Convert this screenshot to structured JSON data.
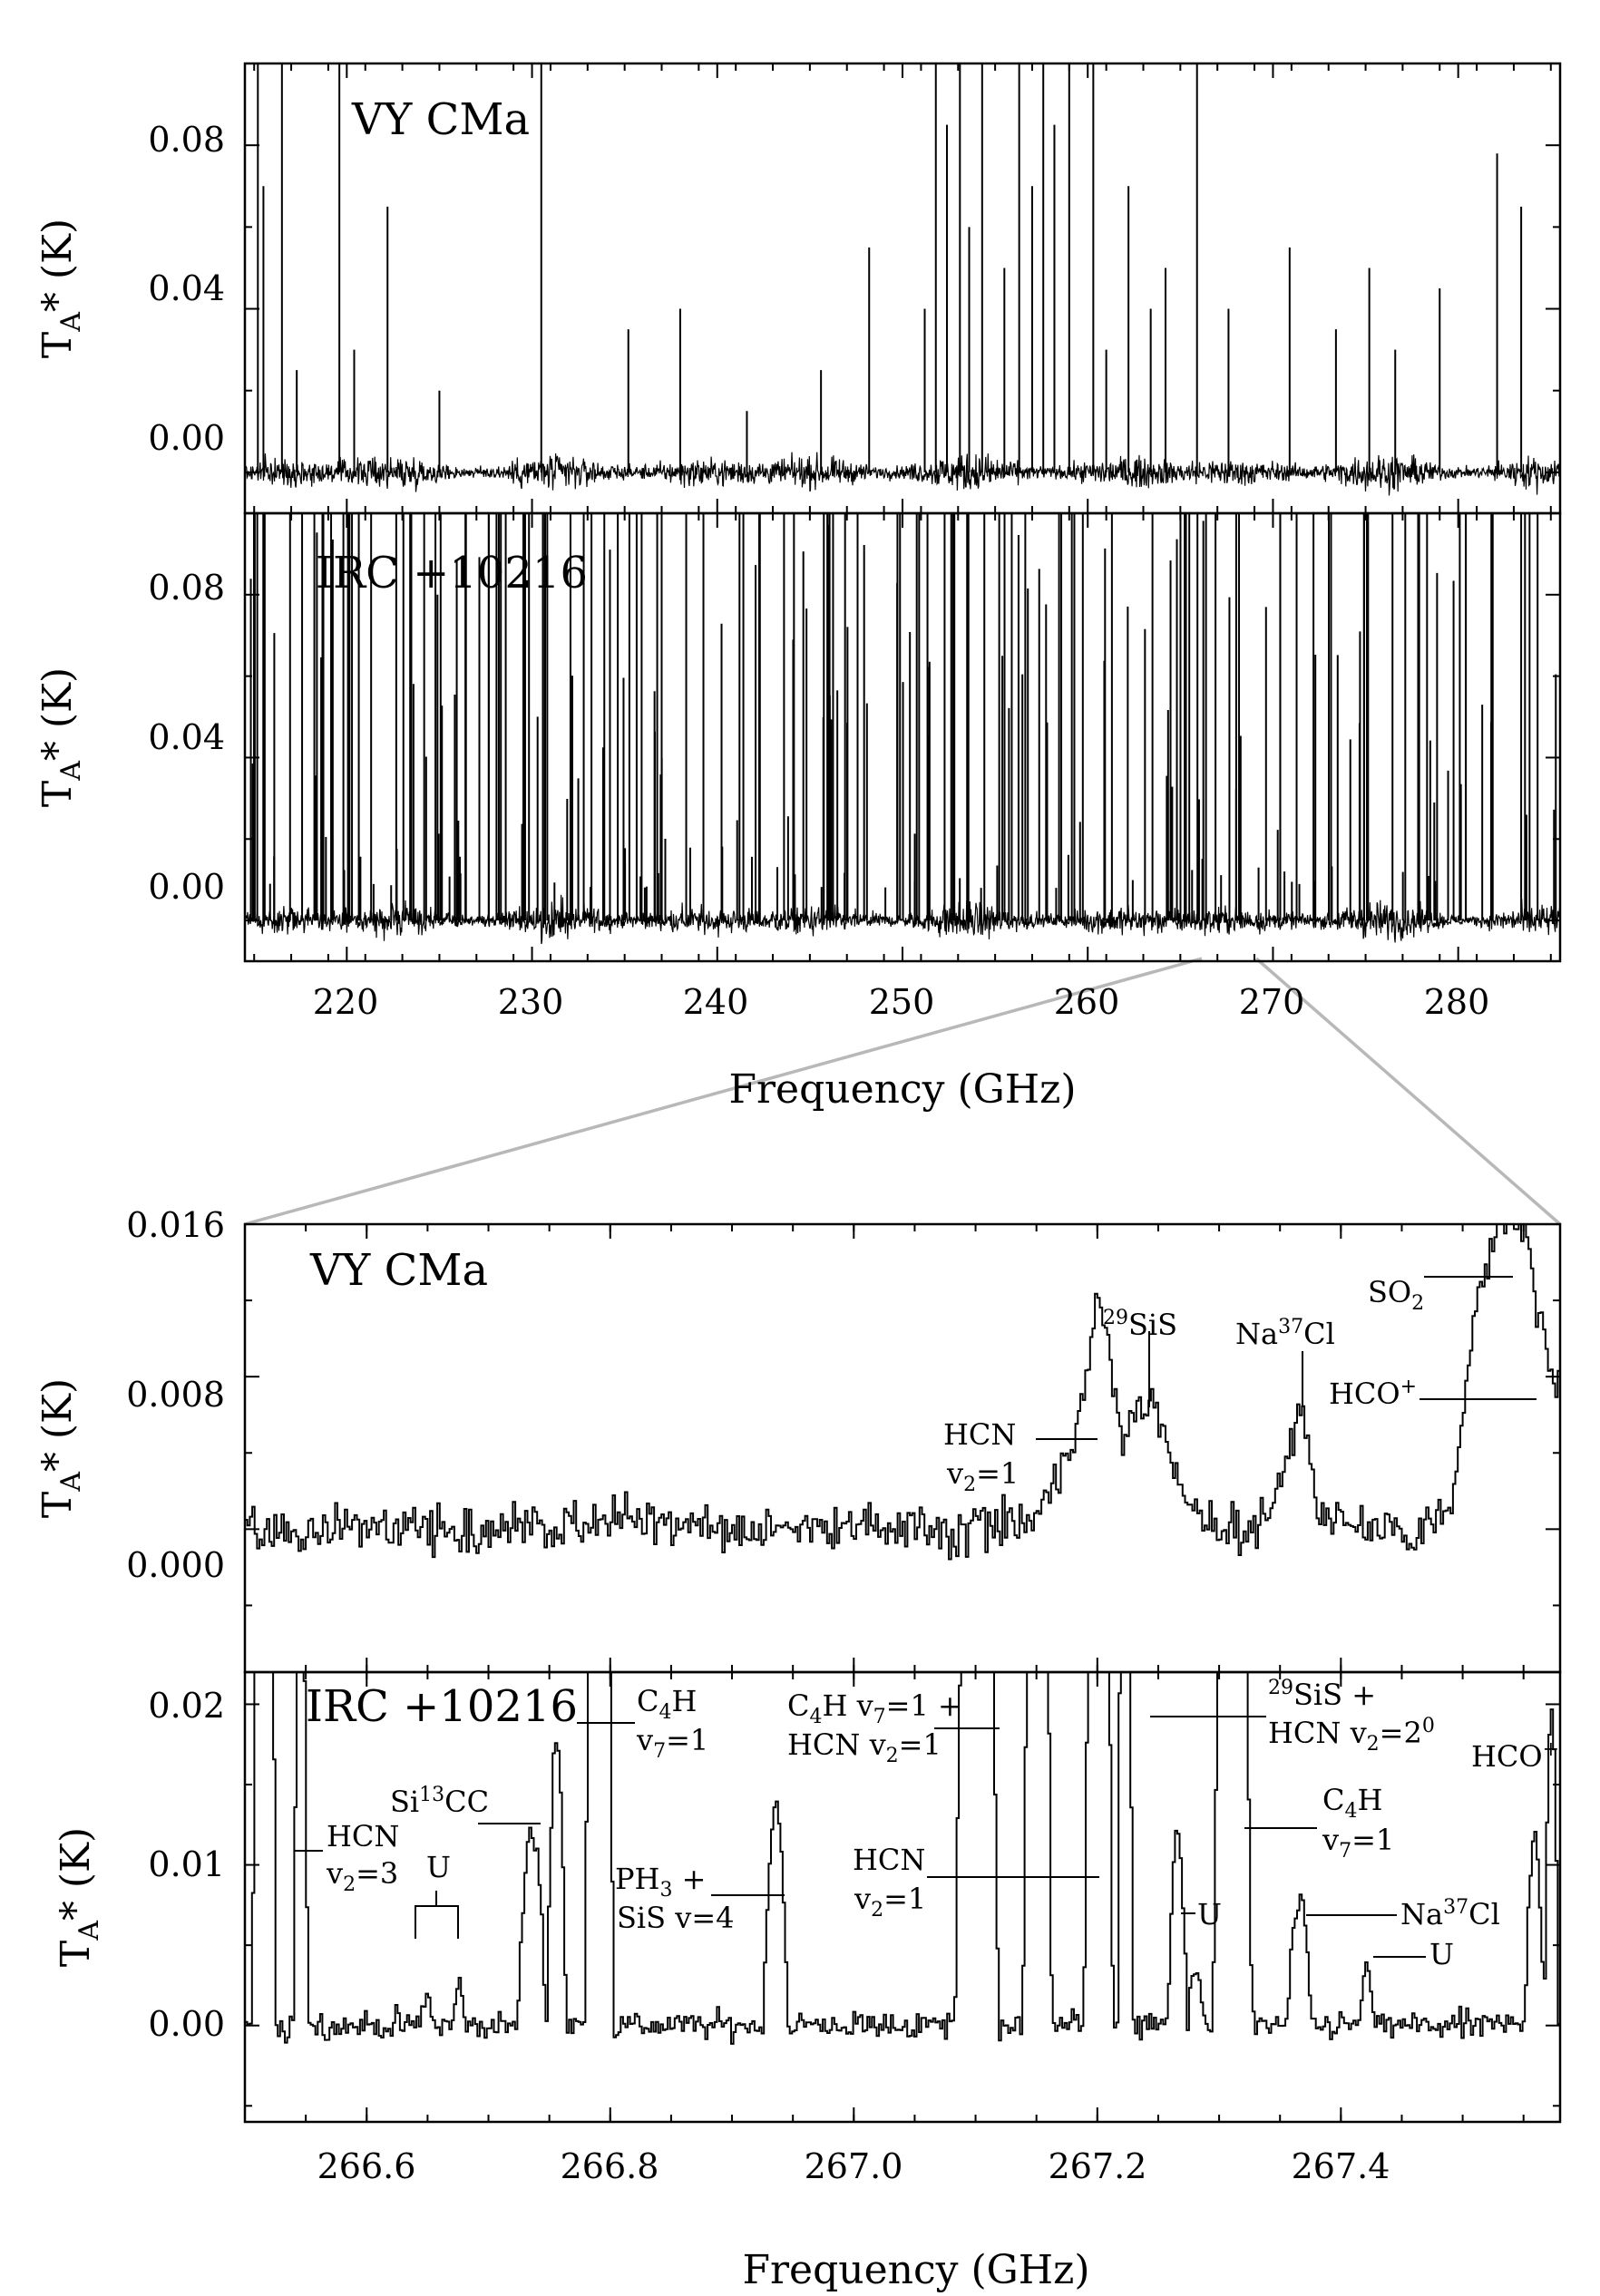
{
  "figure": {
    "top_xlabel": "Frequency (GHz)",
    "bottom_xlabel": "Frequency (GHz)"
  },
  "chart_data": [
    {
      "type": "line",
      "title": "VY CMa",
      "ylabel": "TA* (K)",
      "xlim": [
        214.5,
        285.5
      ],
      "ylim": [
        -0.01,
        0.1
      ],
      "x_ticks": [
        220,
        230,
        240,
        250,
        260,
        270,
        280
      ],
      "y_ticks": [
        "0.00",
        "0.04",
        "0.08"
      ],
      "baseline_noise": 0.003,
      "lines": [
        {
          "x": 215.2,
          "y": 0.1
        },
        {
          "x": 215.5,
          "y": 0.07
        },
        {
          "x": 216.5,
          "y": 0.1
        },
        {
          "x": 217.3,
          "y": 0.025
        },
        {
          "x": 219.6,
          "y": 0.1
        },
        {
          "x": 220.4,
          "y": 0.03
        },
        {
          "x": 222.2,
          "y": 0.065
        },
        {
          "x": 225.0,
          "y": 0.02
        },
        {
          "x": 230.5,
          "y": 0.1
        },
        {
          "x": 235.2,
          "y": 0.035
        },
        {
          "x": 238.0,
          "y": 0.04
        },
        {
          "x": 241.6,
          "y": 0.015
        },
        {
          "x": 245.6,
          "y": 0.025
        },
        {
          "x": 248.2,
          "y": 0.055
        },
        {
          "x": 251.2,
          "y": 0.04
        },
        {
          "x": 251.8,
          "y": 0.1
        },
        {
          "x": 252.4,
          "y": 0.085
        },
        {
          "x": 253.1,
          "y": 0.1
        },
        {
          "x": 253.6,
          "y": 0.06
        },
        {
          "x": 254.3,
          "y": 0.1
        },
        {
          "x": 255.5,
          "y": 0.05
        },
        {
          "x": 256.3,
          "y": 0.1
        },
        {
          "x": 257.0,
          "y": 0.07
        },
        {
          "x": 257.6,
          "y": 0.1
        },
        {
          "x": 258.2,
          "y": 0.085
        },
        {
          "x": 259.0,
          "y": 0.1
        },
        {
          "x": 260.3,
          "y": 0.1
        },
        {
          "x": 261.0,
          "y": 0.03
        },
        {
          "x": 262.2,
          "y": 0.07
        },
        {
          "x": 263.4,
          "y": 0.04
        },
        {
          "x": 264.2,
          "y": 0.05
        },
        {
          "x": 265.9,
          "y": 0.1
        },
        {
          "x": 267.6,
          "y": 0.04
        },
        {
          "x": 270.9,
          "y": 0.055
        },
        {
          "x": 273.4,
          "y": 0.035
        },
        {
          "x": 275.2,
          "y": 0.05
        },
        {
          "x": 276.6,
          "y": 0.03
        },
        {
          "x": 279.0,
          "y": 0.045
        },
        {
          "x": 282.1,
          "y": 0.078
        },
        {
          "x": 283.4,
          "y": 0.065
        }
      ]
    },
    {
      "type": "line",
      "title": "IRC +10216",
      "ylabel": "TA* (K)",
      "xlim": [
        214.5,
        285.5
      ],
      "ylim": [
        -0.01,
        0.1
      ],
      "x_ticks": [
        220,
        230,
        240,
        250,
        260,
        270,
        280
      ],
      "y_ticks": [
        "0.00",
        "0.04",
        "0.08"
      ],
      "baseline_noise": 0.003,
      "line_count": 260
    },
    {
      "type": "line",
      "title": "VY CMa",
      "ylabel": "TA* (K)",
      "xlim": [
        266.5,
        267.58
      ],
      "ylim": [
        -0.0075,
        0.016
      ],
      "y_ticks": [
        "0.000",
        "0.008",
        "0.016"
      ],
      "series": [
        {
          "x": [
            266.5,
            266.6,
            266.7,
            266.8,
            266.9,
            267.0,
            267.1,
            267.15,
            267.18,
            267.2,
            267.22,
            267.245,
            267.27,
            267.3,
            267.33,
            267.355,
            267.365,
            267.38,
            267.42,
            267.46,
            267.49,
            267.5,
            267.51,
            267.53,
            267.55,
            267.57
          ],
          "y": [
            0.0,
            0.0,
            0.0,
            0.0005,
            0.0,
            0.0,
            0.0,
            0.001,
            0.004,
            0.0125,
            0.005,
            0.0068,
            0.0015,
            0.0,
            0.0,
            0.0035,
            0.0072,
            0.001,
            0.0,
            0.0,
            0.001,
            0.006,
            0.012,
            0.016,
            0.016,
            0.008
          ]
        }
      ],
      "annotations": [
        {
          "text": "29SiS",
          "x": 267.245
        },
        {
          "text": "Na37Cl",
          "x": 267.365
        },
        {
          "text": "SO2",
          "x": 267.52
        },
        {
          "text": "HCO+",
          "x": 267.54
        },
        {
          "text": "HCN v2=1",
          "x": 267.2
        }
      ]
    },
    {
      "type": "line",
      "title": "IRC +10216",
      "xlabel": "Frequency (GHz)",
      "ylabel": "TA* (K)",
      "xlim": [
        266.5,
        267.58
      ],
      "ylim": [
        -0.006,
        0.022
      ],
      "x_ticks": [
        "266.6",
        "266.8",
        "267.0",
        "267.2",
        "267.4"
      ],
      "y_ticks": [
        "0.00",
        "0.01",
        "0.02"
      ],
      "annotations": [
        {
          "text": "HCN v2=3",
          "x": 266.54
        },
        {
          "text": "U",
          "x": 266.66
        },
        {
          "text": "Si13CC",
          "x": 266.735
        },
        {
          "text": "C4H v7=1",
          "x": 266.78
        },
        {
          "text": "PH3 + SiS v=4",
          "x": 266.935
        },
        {
          "text": "C4H v7=1 + HCN v2=1",
          "x": 267.1
        },
        {
          "text": "HCN v2=1",
          "x": 267.2
        },
        {
          "text": "U",
          "x": 267.27
        },
        {
          "text": "29SiS + HCN v2=20",
          "x": 267.245
        },
        {
          "text": "C4H v7=1",
          "x": 267.32
        },
        {
          "text": "Na37Cl",
          "x": 267.365
        },
        {
          "text": "U",
          "x": 267.42
        },
        {
          "text": "HCO+",
          "x": 267.558
        }
      ]
    }
  ],
  "labels": {
    "p1_title": "VY CMa",
    "p2_title": "IRC +10216",
    "p3_title": "VY CMa",
    "p4_title": "IRC +10216",
    "ylabel_main": "T",
    "ylabel_sub": "A",
    "ylabel_tail": "* (K)",
    "p1_y": [
      "0.00",
      "0.04",
      "0.08"
    ],
    "p2_y": [
      "0.00",
      "0.04",
      "0.08"
    ],
    "top_x": [
      "220",
      "230",
      "240",
      "250",
      "260",
      "270",
      "280"
    ],
    "p3_y": [
      "0.000",
      "0.008",
      "0.016"
    ],
    "p4_y": [
      "0.00",
      "0.01",
      "0.02"
    ],
    "bot_x": [
      "266.6",
      "266.8",
      "267.0",
      "267.2",
      "267.4"
    ],
    "a3_29sis_sup": "29",
    "a3_29sis": "SiS",
    "a3_na37cl_a": "Na",
    "a3_na37cl_sup": "37",
    "a3_na37cl_b": "Cl",
    "a3_so2": "SO",
    "a3_so2_sub": "2",
    "a3_hco": "HCO",
    "a3_hco_sup": "+",
    "a3_hcn": "HCN",
    "a3_hcn_v": "v",
    "a3_hcn_sub": "2",
    "a3_hcn_eq": "=1",
    "a4_hcn3": "HCN",
    "a4_hcn3_v": "v",
    "a4_hcn3_sub": "2",
    "a4_hcn3_eq": "=3",
    "a4_u1": "U",
    "a4_si13cc_a": "Si",
    "a4_si13cc_sup": "13",
    "a4_si13cc_b": "CC",
    "a4_c4h_a": "C",
    "a4_c4h_sub": "4",
    "a4_c4h_b": "H",
    "a4_c4h_v": "v",
    "a4_c4h_vsub": "7",
    "a4_c4h_eq": "=1",
    "a4_ph3_a": "PH",
    "a4_ph3_sub": "3",
    "a4_ph3_b": " +",
    "a4_ph3_line2": "SiS v=4",
    "a4_c4hhcn_a": "C",
    "a4_c4hhcn_sub": "4",
    "a4_c4hhcn_b": "H v",
    "a4_c4hhcn_sub2": "7",
    "a4_c4hhcn_c": "=1 +",
    "a4_c4hhcn_l2a": "HCN v",
    "a4_c4hhcn_l2sub": "2",
    "a4_c4hhcn_l2b": "=1",
    "a4_hcn1": "HCN",
    "a4_hcn1_v": "v",
    "a4_hcn1_sub": "2",
    "a4_hcn1_eq": "=1",
    "a4_u2": "U",
    "a4_29sis_sup": "29",
    "a4_29sis_a": "SiS +",
    "a4_29sis_l2a": "HCN v",
    "a4_29sis_l2sub": "2",
    "a4_29sis_l2b": "=2",
    "a4_29sis_l2sup": "0",
    "a4_c4h2_a": "C",
    "a4_c4h2_sub": "4",
    "a4_c4h2_b": "H",
    "a4_c4h2_v": "v",
    "a4_c4h2_vsub": "7",
    "a4_c4h2_eq": "=1",
    "a4_na37cl_a": "Na",
    "a4_na37cl_sup": "37",
    "a4_na37cl_b": "Cl",
    "a4_u3": "U",
    "a4_hco": "HCO",
    "a4_hco_sup": "+"
  }
}
